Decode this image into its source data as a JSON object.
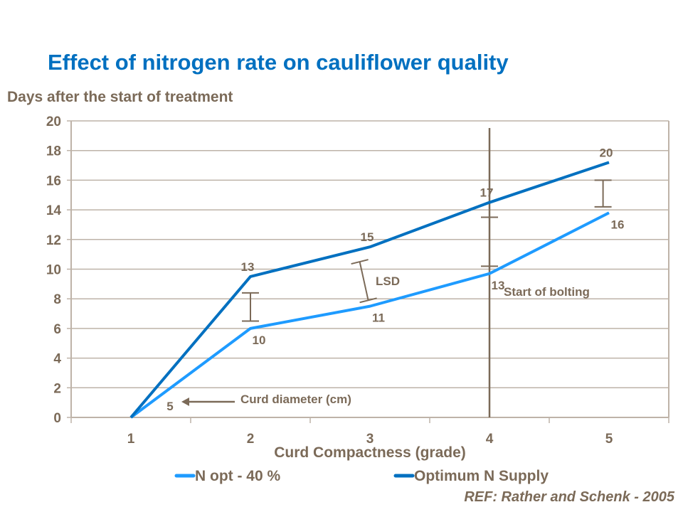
{
  "chart_data": {
    "type": "line",
    "title": "Effect of nitrogen rate on cauliflower quality",
    "ylabel": "Days after the start of treatment",
    "xlabel": "Curd Compactness (grade)",
    "categories": [
      "1",
      "2",
      "3",
      "4",
      "5"
    ],
    "ylim": [
      0,
      20
    ],
    "yticks": [
      "0",
      "2",
      "4",
      "6",
      "8",
      "10",
      "12",
      "14",
      "16",
      "18",
      "20"
    ],
    "grid": true,
    "legend_position": "bottom",
    "series": [
      {
        "name": "N opt - 40 %",
        "color": "#1E9BFF",
        "values": [
          0,
          6,
          7.5,
          9.7,
          13.8
        ],
        "point_labels": [
          "5",
          "10",
          "11",
          "13",
          "16"
        ]
      },
      {
        "name": "Optimum N Supply",
        "color": "#0070C0",
        "values": [
          0,
          9.5,
          11.5,
          14.5,
          17.2
        ],
        "point_labels": [
          "",
          "13",
          "15",
          "17",
          "20"
        ]
      }
    ],
    "lsd_bars": [
      {
        "x": 2,
        "low": 6.5,
        "high": 8.4
      },
      {
        "x": 2.95,
        "low": 7.9,
        "high": 10.5
      },
      {
        "x": 4,
        "low": 10.2,
        "high": 13.5
      },
      {
        "x": 4.95,
        "low": 14.2,
        "high": 16
      }
    ],
    "annotations": {
      "lsd": "LSD",
      "bolting": "Start of bolting",
      "bolting_x": 4,
      "curd_diameter": "Curd diameter (cm)"
    },
    "reference": "REF: Rather and Schenk - 2005",
    "axis_color": "#7B6A58",
    "grid_color": "#BEB3A8"
  }
}
